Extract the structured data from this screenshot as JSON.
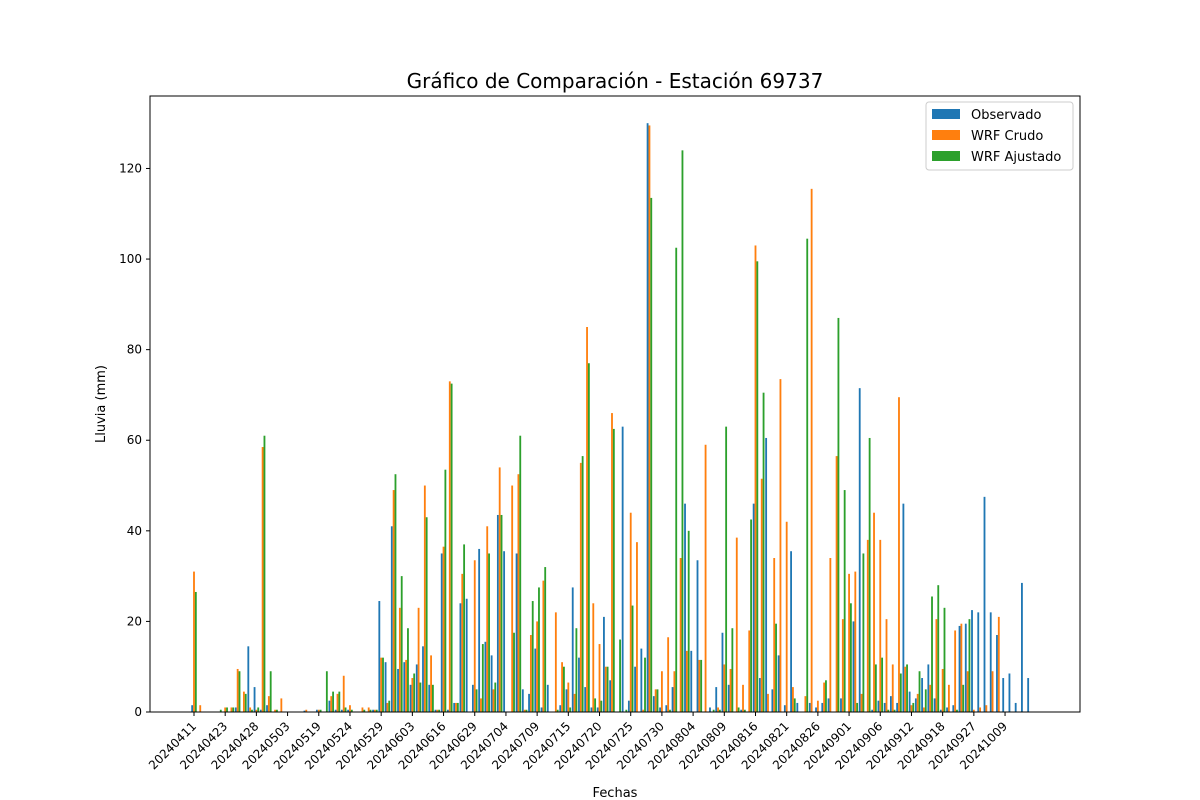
{
  "chart_data": {
    "type": "bar",
    "title": "Gráfico de Comparación - Estación 69737",
    "xlabel": "Fechas",
    "ylabel": "Lluvia (mm)",
    "ylim": [
      0,
      136
    ],
    "yticks": [
      0,
      20,
      40,
      60,
      80,
      100,
      120
    ],
    "legend_position": "top-right",
    "grid": false,
    "tick_labels": [
      "20240411",
      "20240423",
      "20240428",
      "20240503",
      "20240519",
      "20240524",
      "20240529",
      "20240603",
      "20240616",
      "20240629",
      "20240704",
      "20240709",
      "20240715",
      "20240720",
      "20240725",
      "20240730",
      "20240804",
      "20240809",
      "20240816",
      "20240821",
      "20240826",
      "20240901",
      "20240906",
      "20240912",
      "20240918",
      "20240927",
      "20241009"
    ],
    "tick_every": 5,
    "series": [
      {
        "name": "Observado",
        "color": "#1f77b4",
        "values": [
          1.5,
          0,
          0,
          0,
          0,
          0,
          0,
          1,
          0,
          14.5,
          5.5,
          0.5,
          1.5,
          0,
          0,
          0,
          0,
          0,
          0.3,
          0,
          0.5,
          0,
          2.5,
          0.5,
          0.5,
          0.5,
          0,
          0,
          0,
          0.5,
          24.5,
          11,
          41,
          9.5,
          11,
          6,
          10.5,
          14.5,
          6,
          0.5,
          35,
          0.5,
          2,
          24,
          25,
          6,
          36,
          15.5,
          12.5,
          43.5,
          35.5,
          0,
          35,
          5,
          4,
          14,
          1,
          6,
          0,
          1.5,
          5,
          27.5,
          12,
          5.5,
          1,
          1,
          21,
          7,
          0,
          63,
          2.5,
          10,
          14,
          130,
          3.5,
          1,
          1.5,
          5.5,
          0,
          46,
          13.5,
          33.5,
          0,
          1,
          5.5,
          17.5,
          6,
          0,
          0.5,
          0,
          46,
          7.5,
          60.5,
          5,
          12.5,
          1.5,
          35.5,
          2,
          0,
          2,
          1,
          2,
          3,
          0,
          3,
          0,
          20,
          71.5,
          0,
          0.5,
          2.5,
          2,
          3.5,
          2,
          46,
          4.5,
          3,
          7.5,
          10.5,
          3,
          0.5,
          1,
          1.5,
          19,
          19.5,
          22.5,
          22,
          47.5,
          22,
          17,
          7.5,
          8.5,
          2,
          28.5,
          7.5
        ]
      },
      {
        "name": "WRF Crudo",
        "color": "#ff7f0e",
        "values": [
          31,
          1.5,
          0,
          0,
          0,
          1,
          1,
          9.5,
          4.5,
          1,
          0.5,
          58.5,
          3.5,
          0.5,
          3,
          0,
          0,
          0,
          0.5,
          0,
          0.5,
          0,
          3.5,
          4,
          8,
          1.5,
          0,
          1,
          1,
          0.5,
          12,
          2,
          49,
          23,
          11.5,
          7.5,
          23,
          50,
          12.5,
          0.5,
          36.5,
          73,
          2,
          30.5,
          0,
          33.5,
          3,
          41,
          5,
          54,
          0,
          50,
          52.5,
          0.5,
          17,
          20,
          29,
          0,
          22,
          11,
          6.5,
          4,
          55,
          85,
          24,
          15,
          10,
          66,
          0,
          0,
          44,
          37.5,
          0.5,
          129.5,
          5,
          9,
          16.5,
          9,
          34,
          13.5,
          0,
          11.5,
          59,
          0,
          1,
          10.5,
          9.5,
          38.5,
          6,
          18,
          103,
          51.5,
          4,
          34,
          73.5,
          42,
          5.5,
          0,
          3.5,
          115.5,
          2.5,
          6.5,
          34,
          56.5,
          20.5,
          30.5,
          31,
          4,
          38,
          44,
          38,
          20.5,
          10.5,
          69.5,
          10,
          1.5,
          4,
          1,
          6,
          20.5,
          9.5,
          6,
          18,
          19.5,
          9,
          0.5,
          1,
          1.5,
          9,
          21
        ]
      },
      {
        "name": "WRF Ajustado",
        "color": "#2ca02c",
        "values": [
          26.5,
          0,
          0,
          0,
          0.5,
          1,
          1,
          9,
          4,
          0.5,
          1,
          61,
          9,
          0.5,
          0,
          0,
          0,
          0,
          0,
          0,
          0.5,
          9,
          4.5,
          4.5,
          1,
          0.5,
          0,
          0.5,
          0.5,
          0.5,
          12,
          2.5,
          52.5,
          30,
          18.5,
          8.5,
          6.5,
          43,
          6,
          0.5,
          53.5,
          72.5,
          2,
          37,
          0,
          5,
          15,
          35,
          6.5,
          43.5,
          0,
          17.5,
          61,
          0.5,
          24.5,
          27.5,
          32,
          0,
          0.5,
          10,
          1,
          18.5,
          56.5,
          77,
          3,
          2.5,
          10,
          62.5,
          16,
          0.5,
          23.5,
          0,
          12,
          113.5,
          5,
          0,
          0.5,
          102.5,
          124,
          40,
          0,
          11.5,
          0,
          0.5,
          0.5,
          63,
          18.5,
          1,
          0.5,
          42.5,
          99.5,
          70.5,
          0,
          19.5,
          0,
          0,
          3,
          0,
          104.5,
          0,
          0,
          7,
          0,
          87,
          49,
          24,
          2,
          35,
          60.5,
          10.5,
          12,
          0.5,
          0.5,
          8.5,
          10.5,
          2,
          9,
          5,
          25.5,
          28,
          23,
          0,
          0.5,
          6,
          20.5
        ]
      }
    ]
  }
}
